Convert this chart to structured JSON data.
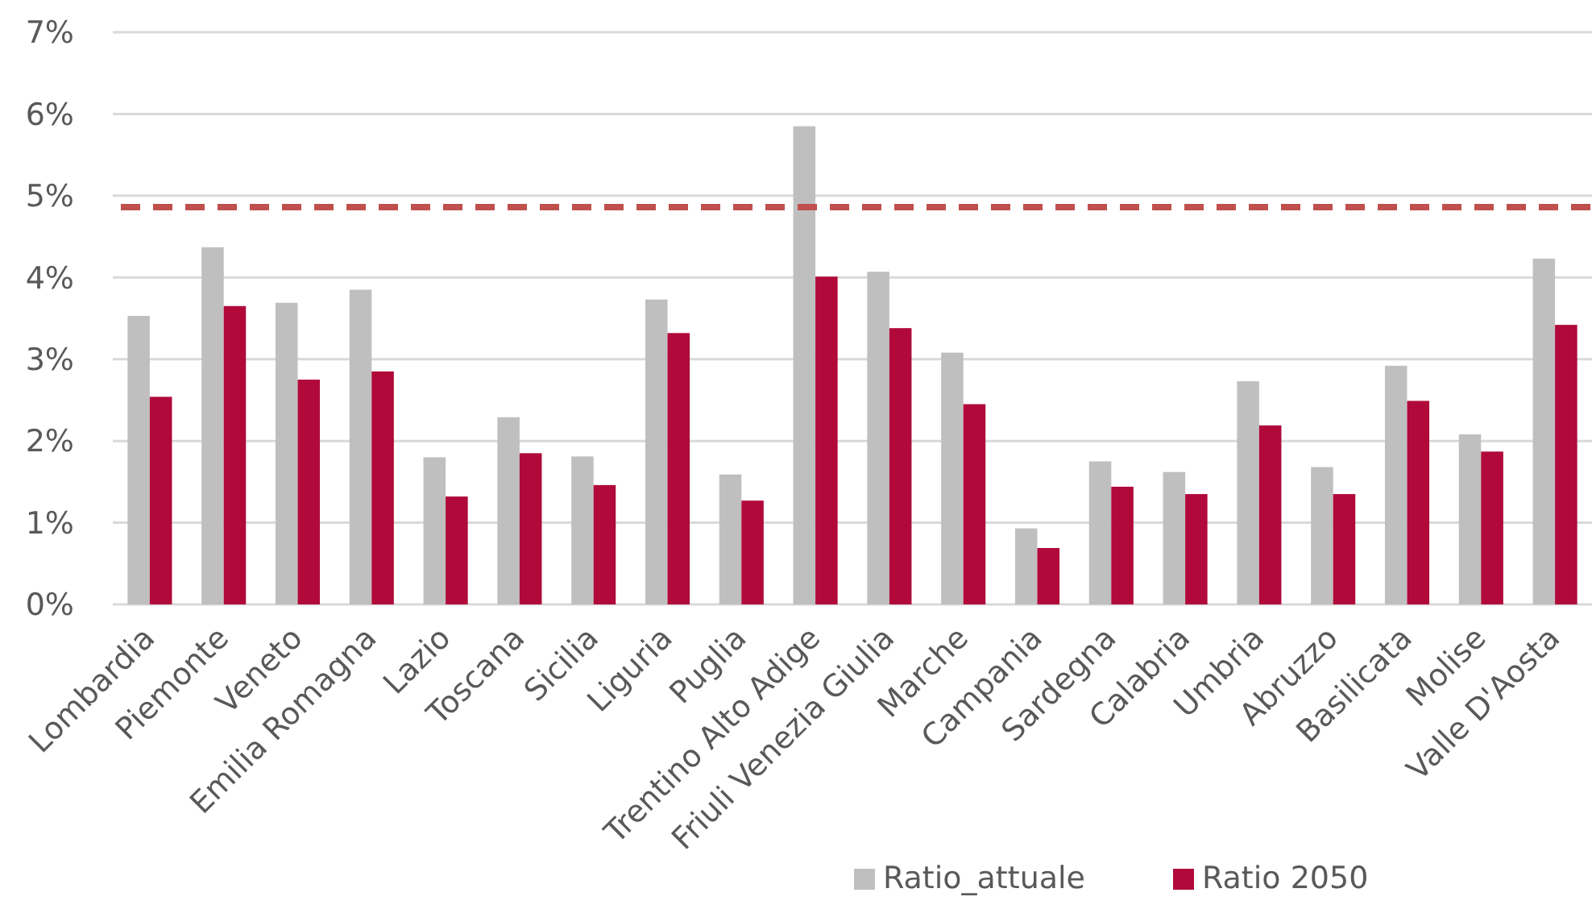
{
  "chart_data": {
    "type": "bar",
    "categories": [
      "Lombardia",
      "Piemonte",
      "Veneto",
      "Emilia Romagna",
      "Lazio",
      "Toscana",
      "Sicilia",
      "Liguria",
      "Puglia",
      "Trentino Alto Adige",
      "Friuli Venezia Giulia",
      "Marche",
      "Campania",
      "Sardegna",
      "Calabria",
      "Umbria",
      "Abruzzo",
      "Basilicata",
      "Molise",
      "Valle D'Aosta"
    ],
    "series": [
      {
        "name": "Ratio_attuale",
        "color": "#bfbfbf",
        "values": [
          3.53,
          4.37,
          3.69,
          3.85,
          1.8,
          2.29,
          1.81,
          3.73,
          1.59,
          5.85,
          4.07,
          3.08,
          0.93,
          1.75,
          1.62,
          2.73,
          1.68,
          2.92,
          2.08,
          4.23
        ]
      },
      {
        "name": "Ratio 2050",
        "color": "#b0093a",
        "values": [
          2.54,
          3.65,
          2.75,
          2.85,
          1.32,
          1.85,
          1.46,
          3.32,
          1.27,
          4.01,
          3.38,
          2.45,
          0.69,
          1.44,
          1.35,
          2.19,
          1.35,
          2.49,
          1.87,
          3.42
        ]
      }
    ],
    "ylim": [
      0,
      7
    ],
    "yticks": [
      {
        "value": 0,
        "label": "0%"
      },
      {
        "value": 1,
        "label": "1%"
      },
      {
        "value": 2,
        "label": "2%"
      },
      {
        "value": 3,
        "label": "3%"
      },
      {
        "value": 4,
        "label": "4%"
      },
      {
        "value": 5,
        "label": "5%"
      },
      {
        "value": 6,
        "label": "6%"
      },
      {
        "value": 7,
        "label": "7%"
      }
    ],
    "grid": "y",
    "legend": "bottom",
    "ref_lines": [
      {
        "axis": "y",
        "value": 4.86,
        "color": "#c0504d",
        "line_style": "dashed"
      }
    ]
  }
}
